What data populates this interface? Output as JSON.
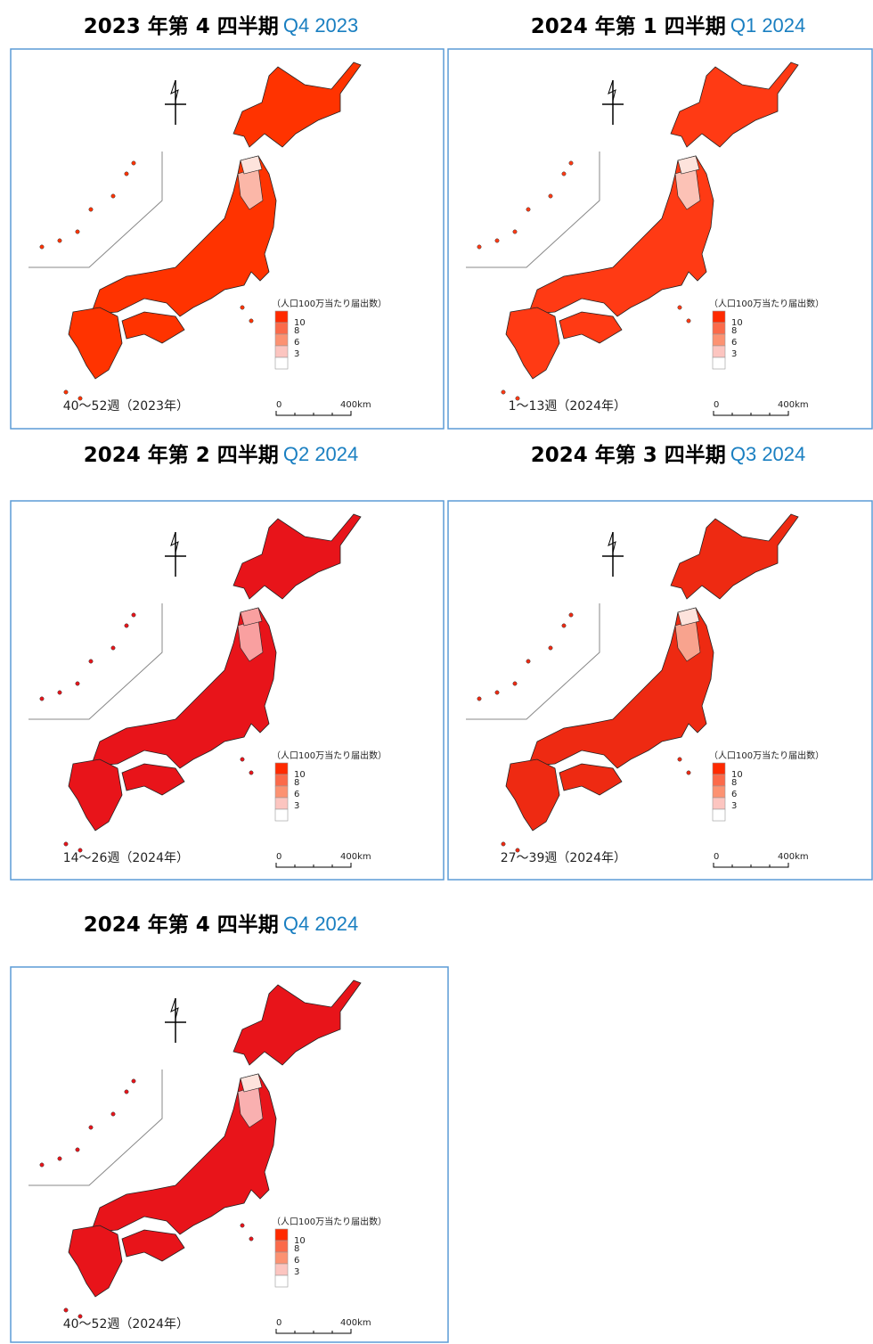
{
  "panels": [
    {
      "title_ja": "2023 年第 4 四半期",
      "title_en": "Q4 2023",
      "period": "40～52週（2023年）"
    },
    {
      "title_ja": "2024 年第 1 四半期",
      "title_en": "Q1 2024",
      "period": "1～13週（2024年）"
    },
    {
      "title_ja": "2024 年第 2 四半期",
      "title_en": "Q2 2024",
      "period": "14～26週（2024年）"
    },
    {
      "title_ja": "2024 年第 3 四半期",
      "title_en": "Q3 2024",
      "period": "27～39週（2024年）"
    },
    {
      "title_ja": "2024 年第 4 四半期",
      "title_en": "Q4 2024",
      "period": "40～52週（2024年）"
    }
  ],
  "legend": {
    "title": "（人口100万当たり届出数）",
    "labels": [
      10,
      8,
      6,
      3
    ]
  },
  "scale": {
    "start": 0,
    "end": "400km"
  }
}
